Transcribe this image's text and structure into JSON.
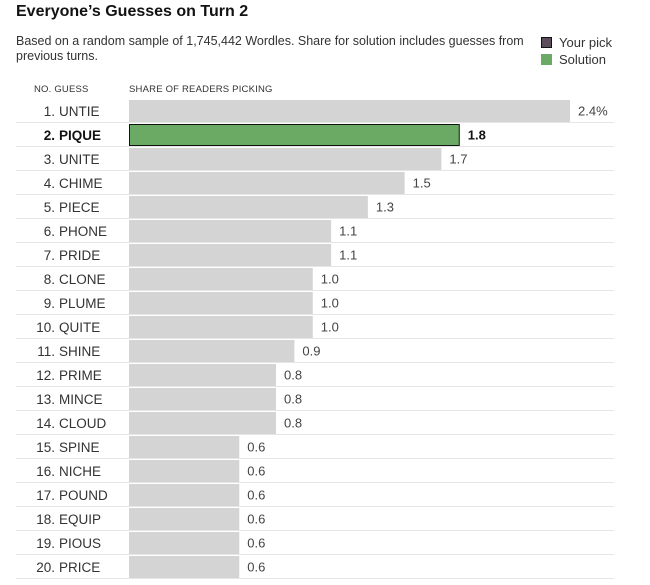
{
  "header": {
    "title": "Everyone’s Guesses on Turn 2",
    "subtitle": "Based on a random sample of 1,745,442 Wordles. Share for solution includes guesses from previous turns."
  },
  "legend": {
    "items": [
      {
        "label": "Your pick",
        "color": "#5c4c5c"
      },
      {
        "label": "Solution",
        "color": "#6aaa64"
      }
    ]
  },
  "columns": {
    "no_guess": "NO.  GUESS",
    "share": "SHARE OF READERS PICKING"
  },
  "colors": {
    "default_bar": "#d4d4d4",
    "solution_bar": "#6aaa64",
    "solution_border": "#121212",
    "divider": "#e6e6e6"
  },
  "chart_data": {
    "type": "bar",
    "orientation": "horizontal",
    "unit": "%",
    "xlim": [
      0,
      2.4
    ],
    "categories": [
      "UNTIE",
      "PIQUE",
      "UNITE",
      "CHIME",
      "PIECE",
      "PHONE",
      "PRIDE",
      "CLONE",
      "PLUME",
      "QUITE",
      "SHINE",
      "PRIME",
      "MINCE",
      "CLOUD",
      "SPINE",
      "NICHE",
      "POUND",
      "EQUIP",
      "PIOUS",
      "PRICE"
    ],
    "values": [
      2.4,
      1.8,
      1.7,
      1.5,
      1.3,
      1.1,
      1.1,
      1.0,
      1.0,
      1.0,
      0.9,
      0.8,
      0.8,
      0.8,
      0.6,
      0.6,
      0.6,
      0.6,
      0.6,
      0.6
    ],
    "value_labels": [
      "2.4%",
      "1.8",
      "1.7",
      "1.5",
      "1.3",
      "1.1",
      "1.1",
      "1.0",
      "1.0",
      "1.0",
      "0.9",
      "0.8",
      "0.8",
      "0.8",
      "0.6",
      "0.6",
      "0.6",
      "0.6",
      "0.6",
      "0.6"
    ],
    "rank_labels": [
      "1.",
      "2.",
      "3.",
      "4.",
      "5.",
      "6.",
      "7.",
      "8.",
      "9.",
      "10.",
      "11.",
      "12.",
      "13.",
      "14.",
      "15.",
      "16.",
      "17.",
      "18.",
      "19.",
      "20."
    ],
    "solution": "PIQUE"
  }
}
